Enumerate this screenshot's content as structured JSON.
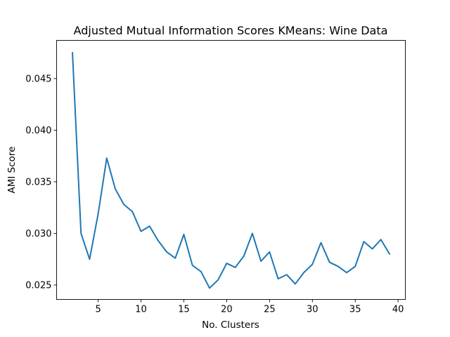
{
  "chart_data": {
    "type": "line",
    "title": "Adjusted Mutual Information Scores KMeans: Wine Data",
    "xlabel": "No. Clusters",
    "ylabel": "AMI Score",
    "xlim": [
      0.15,
      40.85
    ],
    "ylim": [
      0.0236,
      0.0487
    ],
    "xticks": [
      5,
      10,
      15,
      20,
      25,
      30,
      35,
      40
    ],
    "yticks": [
      0.025,
      0.03,
      0.035,
      0.04,
      0.045
    ],
    "xtick_labels": [
      "5",
      "10",
      "15",
      "20",
      "25",
      "30",
      "35",
      "40"
    ],
    "ytick_labels": [
      "0.025",
      "0.030",
      "0.035",
      "0.040",
      "0.045"
    ],
    "grid": false,
    "series": [
      {
        "color": "#1f77b4",
        "x": [
          2,
          3,
          4,
          5,
          6,
          7,
          8,
          9,
          10,
          11,
          12,
          13,
          14,
          15,
          16,
          17,
          18,
          19,
          20,
          21,
          22,
          23,
          24,
          25,
          26,
          27,
          28,
          29,
          30,
          31,
          32,
          33,
          34,
          35,
          36,
          37,
          38,
          39
        ],
        "values": [
          0.0475,
          0.03,
          0.0275,
          0.0319,
          0.0373,
          0.0343,
          0.0328,
          0.0321,
          0.0302,
          0.0307,
          0.0293,
          0.0282,
          0.0276,
          0.0299,
          0.0269,
          0.0263,
          0.0247,
          0.0255,
          0.0271,
          0.0267,
          0.0278,
          0.03,
          0.0273,
          0.0282,
          0.0256,
          0.026,
          0.0251,
          0.0262,
          0.027,
          0.0291,
          0.0272,
          0.0268,
          0.0262,
          0.0268,
          0.0292,
          0.0285,
          0.0294,
          0.028
        ]
      }
    ]
  }
}
